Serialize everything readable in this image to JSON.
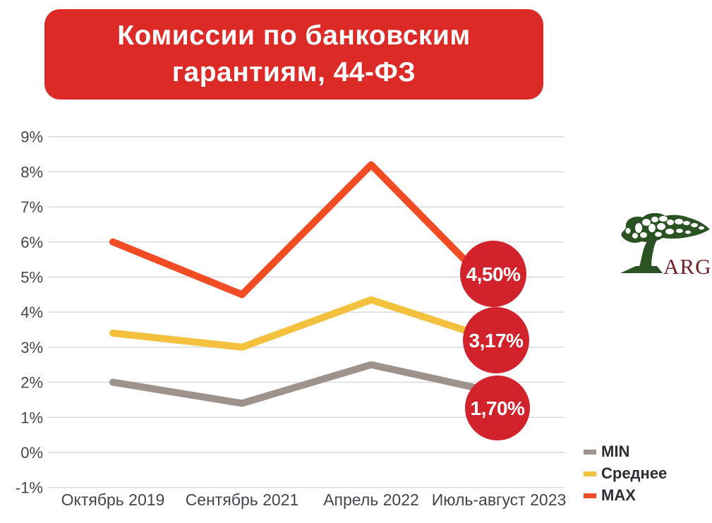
{
  "title": {
    "line1": "Комиссии по банковским",
    "line2": "гарантиям, 44-ФЗ"
  },
  "chart_data": {
    "type": "line",
    "title": "Комиссии по банковским гарантиям, 44-ФЗ",
    "categories": [
      "Октябрь 2019",
      "Сентябрь 2021",
      "Апрель 2022",
      "Июль-август 2023"
    ],
    "series": [
      {
        "name": "MIN",
        "color": "#9D938C",
        "values": [
          2.0,
          1.4,
          2.5,
          1.7
        ]
      },
      {
        "name": "Среднее",
        "color": "#F4C13E",
        "values": [
          3.4,
          3.0,
          4.35,
          3.17
        ]
      },
      {
        "name": "MAX",
        "color": "#F14C23",
        "values": [
          6.0,
          4.5,
          8.2,
          4.5
        ]
      }
    ],
    "end_labels": [
      {
        "series": "MAX",
        "text": "4,50%"
      },
      {
        "series": "Среднее",
        "text": "3,17%"
      },
      {
        "series": "MIN",
        "text": "1,70%"
      }
    ],
    "y_ticks": [
      "9%",
      "8%",
      "7%",
      "6%",
      "5%",
      "4%",
      "3%",
      "2%",
      "1%",
      "0%",
      "-1%"
    ],
    "ylim": [
      -1,
      9
    ],
    "grid": true,
    "grid_color": "#D8D8D8",
    "legend_position": "bottom-right",
    "label_circle_color": "#D2232D"
  },
  "colors": {
    "banner": "#DC2A27",
    "banner_text": "#FFFFFF",
    "axis_text": "#45454D",
    "legend_text": "#2D2D35",
    "logo_green": "#2B5222",
    "logo_text": "#6F2127"
  },
  "logo": {
    "text": "ARG"
  }
}
